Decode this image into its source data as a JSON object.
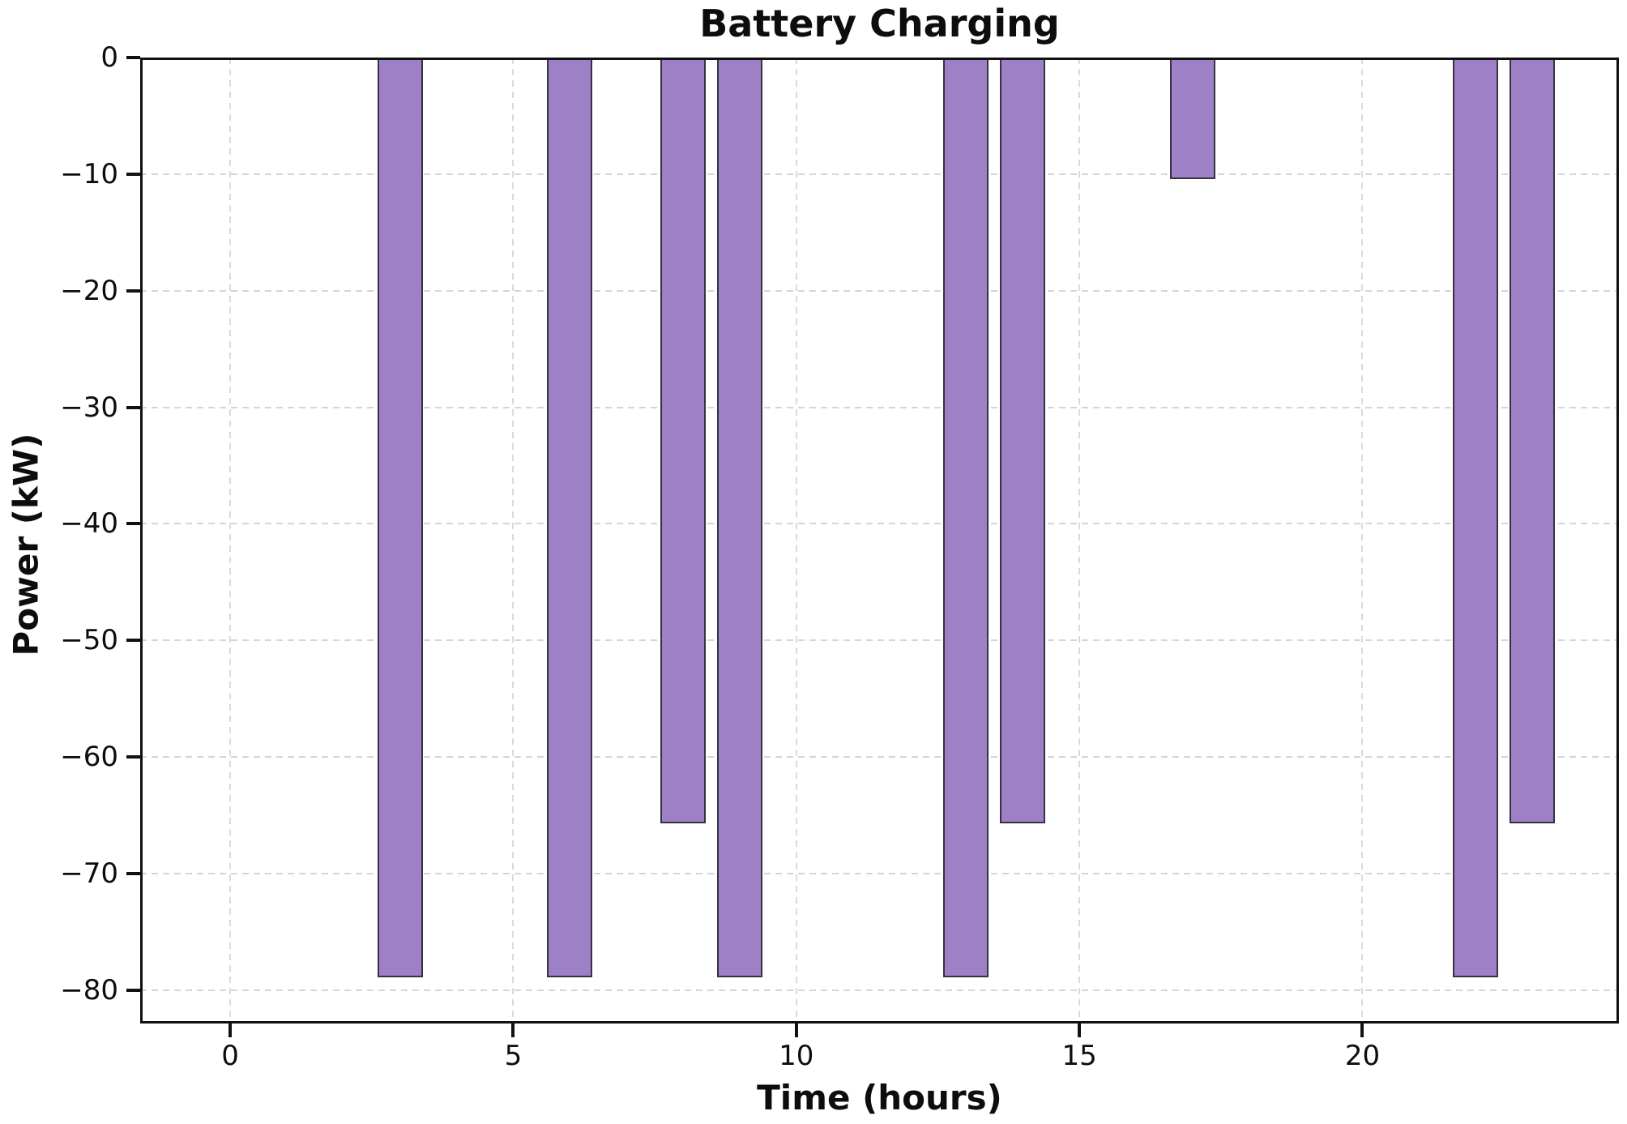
{
  "chart_data": {
    "type": "bar",
    "title": "Battery Charging",
    "xlabel": "Time (hours)",
    "ylabel": "Power (kW)",
    "x": [
      3,
      6,
      8,
      9,
      13,
      14,
      17,
      22,
      23
    ],
    "values": [
      -78.9,
      -78.9,
      -65.7,
      -78.9,
      -78.9,
      -65.7,
      -10.4,
      -78.9,
      -65.7
    ],
    "bar_width_hours": 0.8,
    "xlim": [
      -1.59,
      24.53
    ],
    "ylim": [
      -82.85,
      0
    ],
    "x_ticks": [
      0,
      5,
      10,
      15,
      20
    ],
    "x_tick_labels": [
      "0",
      "5",
      "10",
      "15",
      "20"
    ],
    "y_ticks": [
      0,
      -10,
      -20,
      -30,
      -40,
      -50,
      -60,
      -70,
      -80
    ],
    "y_tick_labels": [
      "0",
      "−10",
      "−20",
      "−30",
      "−40",
      "−50",
      "−60",
      "−70",
      "−80"
    ],
    "grid": "both-axes, dashed, behind bars",
    "legend": "none",
    "colors": {
      "bar_fill": "#9d80c6",
      "bar_edge": "#37323f",
      "gridline": "#c7c7c7",
      "spine": "#111111",
      "text": "#0d0d0d",
      "background": "#ffffff"
    }
  }
}
